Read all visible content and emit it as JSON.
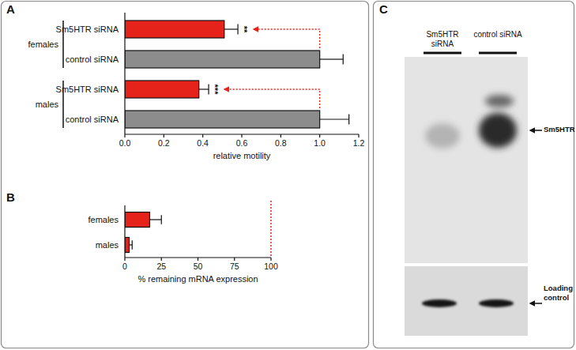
{
  "chart_data": [
    {
      "type": "bar",
      "title": "A",
      "orientation": "horizontal",
      "categories": [
        "Sm5HTR siRNA",
        "control siRNA",
        "Sm5HTR siRNA",
        "control siRNA"
      ],
      "groups": [
        {
          "name": "females",
          "size": 2
        },
        {
          "name": "males",
          "size": 2
        }
      ],
      "values": [
        0.51,
        1.0,
        0.38,
        1.0
      ],
      "errors": [
        0.07,
        0.12,
        0.05,
        0.15
      ],
      "colors": [
        "#e5231b",
        "#8c8c8c",
        "#e5231b",
        "#8c8c8c"
      ],
      "x_label": "relative motility",
      "xlim": [
        0,
        1.2
      ],
      "xticks": [
        {
          "value": 0,
          "label": "0.0"
        },
        0.2,
        0.4,
        0.6,
        0.8,
        {
          "value": 1,
          "label": "1.0"
        },
        1.2
      ],
      "annotations": [
        {
          "text": "**",
          "category": 0,
          "compare_to": 1
        },
        {
          "text": "***",
          "category": 2,
          "compare_to": 3
        }
      ],
      "grid": false
    },
    {
      "type": "bar",
      "title": "B",
      "orientation": "horizontal",
      "categories": [
        "females",
        "males"
      ],
      "values": [
        17,
        3
      ],
      "errors": [
        8,
        2
      ],
      "color": "#e5231b",
      "x_label": "% remaining mRNA expression",
      "xlim": [
        0,
        100
      ],
      "xticks": [
        0,
        25,
        50,
        75,
        100
      ],
      "reference_line": 100,
      "grid": false
    }
  ],
  "blot": {
    "title": "C",
    "lanes": [
      "Sm5HTR siRNA",
      "control siRNA"
    ],
    "bands": [
      "Sm5HTR",
      "Loading control"
    ]
  }
}
